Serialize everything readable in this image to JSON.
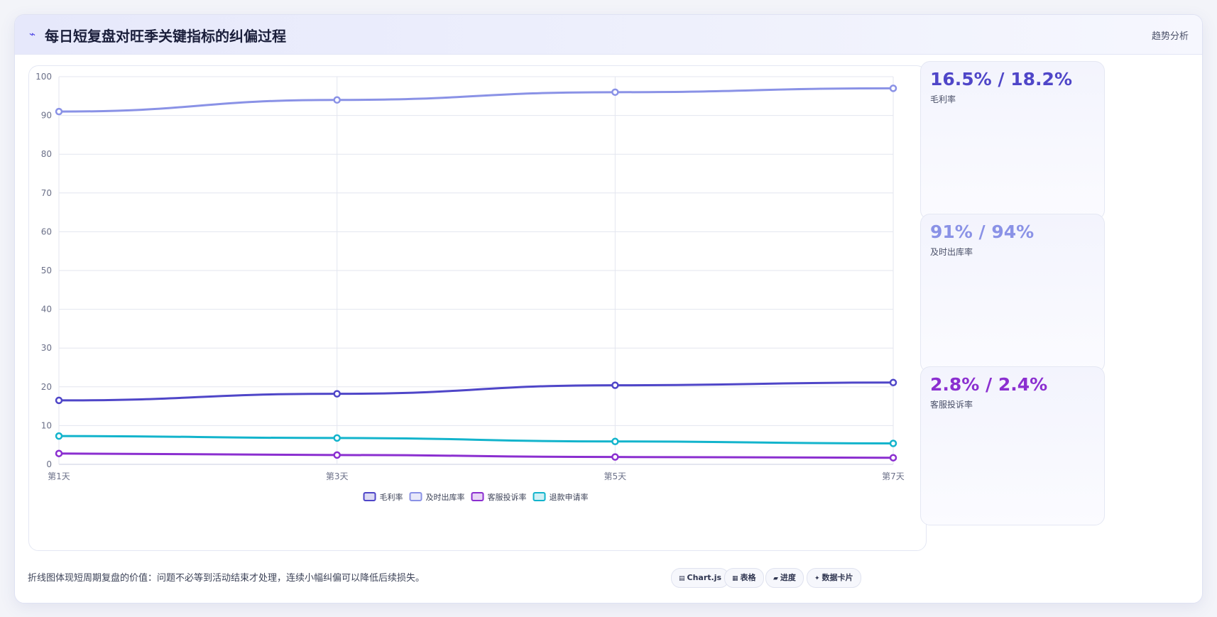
{
  "header": {
    "icon": "trend-line-icon",
    "title": "每日短复盘对旺季关键指标的纠偏过程",
    "tag": "趋势分析"
  },
  "kpis": [
    {
      "value": "16.5% / 18.2%",
      "label": "毛利率",
      "color": "#4f46c8"
    },
    {
      "value": "91% / 94%",
      "label": "及时出库率",
      "color": "#8a92e6"
    },
    {
      "value": "2.8% / 2.4%",
      "label": "客服投诉率",
      "color": "#8b2fd0"
    }
  ],
  "note": "折线图体现短周期复盘的价值：问题不必等到活动结束才处理，连续小幅纠偏可以降低后续损失。",
  "chips": [
    {
      "icon": "chart-icon",
      "glyph": "▤",
      "label": "Chart.js"
    },
    {
      "icon": "table-icon",
      "glyph": "▦",
      "label": "表格"
    },
    {
      "icon": "progress-icon",
      "glyph": "▰",
      "label": "进度"
    },
    {
      "icon": "card-icon",
      "glyph": "✦",
      "label": "数据卡片"
    }
  ],
  "chart_data": {
    "type": "line",
    "x": [
      "第1天",
      "第3天",
      "第5天",
      "第7天"
    ],
    "y_ticks": [
      0,
      10,
      20,
      30,
      40,
      50,
      60,
      70,
      80,
      90,
      100
    ],
    "ylim": [
      0,
      100
    ],
    "grid": true,
    "legend_position": "bottom",
    "series": [
      {
        "name": "毛利率",
        "values": [
          16.5,
          18.2,
          20.4,
          21.1
        ],
        "color": "#4f46c8"
      },
      {
        "name": "及时出库率",
        "values": [
          91,
          94,
          96,
          97
        ],
        "color": "#8a92e6"
      },
      {
        "name": "客服投诉率",
        "values": [
          2.8,
          2.4,
          1.9,
          1.7
        ],
        "color": "#8b2fd0"
      },
      {
        "name": "退款申请率",
        "values": [
          7.3,
          6.8,
          5.9,
          5.4
        ],
        "color": "#13b4cc"
      }
    ]
  }
}
